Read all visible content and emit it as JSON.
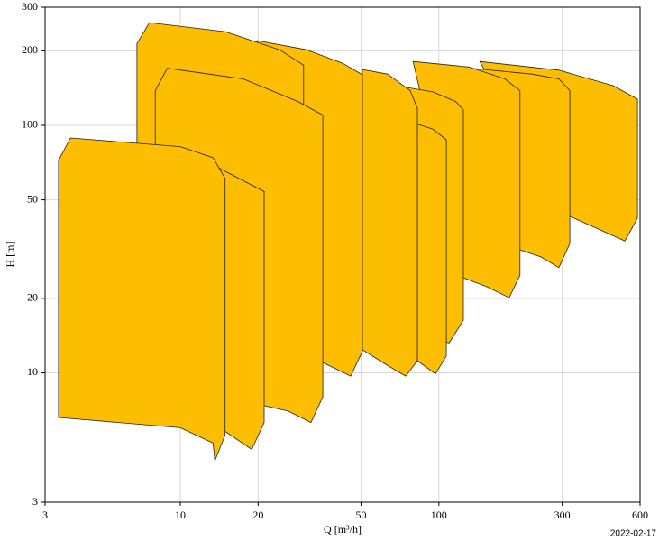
{
  "chart_data": {
    "type": "region",
    "xlabel": "Q [m³/h]",
    "ylabel": "H [m]",
    "footnote": "2022-02-17",
    "xscale": "log",
    "yscale": "log",
    "grid": true,
    "color": "#fdbd00",
    "xlim": [
      3,
      600
    ],
    "ylim": [
      3,
      300
    ],
    "xticks": [
      3,
      10,
      20,
      50,
      100,
      300,
      600
    ],
    "yticks": [
      3,
      10,
      20,
      50,
      100,
      200,
      300
    ],
    "series": [
      {
        "x": [
          143.8,
          291,
          472,
          586,
          586,
          524,
          321
        ],
        "values": [
          181,
          167,
          144.6,
          127.6,
          42.1,
          34.1,
          42.9
        ]
      },
      {
        "x": [
          125.5,
          229,
          291,
          321,
          321,
          291,
          248,
          206
        ],
        "values": [
          171,
          161,
          154,
          138,
          33.3,
          26.6,
          29.4,
          31.4
        ]
      },
      {
        "x": [
          79.5,
          130.5,
          180,
          206,
          206,
          187,
          153,
          124.4
        ],
        "values": [
          181,
          172,
          154,
          138,
          24.8,
          20.1,
          22.3,
          24.2
        ]
      },
      {
        "x": [
          68.7,
          94.7,
          115.8,
          124.4,
          124.4,
          109.5,
          82.6
        ],
        "values": [
          144.6,
          136.5,
          125,
          115.4,
          16.3,
          13.2,
          14.4
        ]
      },
      {
        "x": [
          82.6,
          94.7,
          106.9,
          106.9,
          97,
          82.6
        ],
        "values": [
          101,
          96.6,
          87.4,
          11.7,
          9.9,
          11.2
        ]
      },
      {
        "x": [
          50.6,
          63.4,
          77.5,
          82.6,
          82.6,
          74.5,
          63.4,
          50.6
        ],
        "values": [
          168,
          161,
          138,
          117,
          11.2,
          9.7,
          10.7,
          12.4
        ]
      },
      {
        "x": [
          19.8,
          30.8,
          42.5,
          50.6,
          50.6,
          45.6,
          35.6
        ],
        "values": [
          220,
          202,
          178,
          160,
          12.2,
          9.7,
          11
        ]
      },
      {
        "x": [
          6.8,
          7.6,
          14.9,
          24.2,
          30,
          30,
          6.8
        ],
        "values": [
          214,
          260,
          239,
          202,
          175,
          26,
          26
        ]
      },
      {
        "x": [
          8,
          8.9,
          17.5,
          28.4,
          35.6,
          35.6,
          32,
          26.2,
          14.9,
          8
        ],
        "values": [
          138,
          170,
          154,
          125,
          110,
          8,
          6.3,
          7,
          8,
          9.5
        ]
      },
      {
        "x": [
          8.5,
          13.8,
          21.1,
          21.1,
          18.9,
          14.9,
          8.5
        ],
        "values": [
          77,
          68,
          54,
          6.3,
          4.9,
          5.8,
          6.8
        ]
      },
      {
        "x": [
          3.38,
          3.76,
          10,
          13.4,
          14.9,
          14.9,
          13.6,
          13.4,
          10,
          3.38
        ],
        "values": [
          72,
          88.9,
          82,
          74,
          61,
          5.6,
          4.4,
          5.2,
          6,
          6.6
        ]
      }
    ]
  }
}
